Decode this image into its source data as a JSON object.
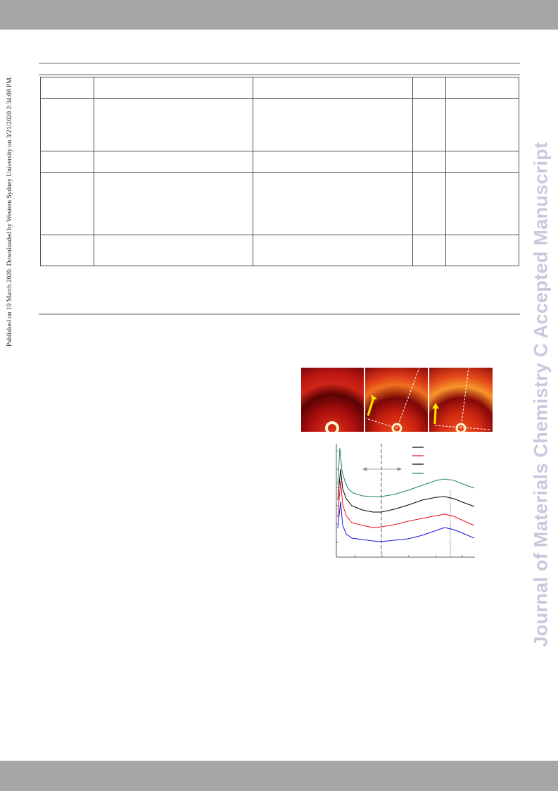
{
  "sidebar_text": "Published on 19 March 2020. Downloaded by Western Sydney University on 3/21/2020 2:34:08 PM.",
  "watermark": "Journal of Materials Chemistry C Accepted Manuscript",
  "colors": {
    "band": "#a6a6a6",
    "watermark": "#c7c9dd",
    "series": [
      "#000000",
      "#e8131b",
      "#000000",
      "#1f7f78"
    ]
  },
  "chart_data": {
    "type": "line",
    "title": "",
    "xlabel": "",
    "ylabel": "",
    "y_scale": "log",
    "legend": "top-right",
    "series": [
      {
        "color": "#1f7f78"
      },
      {
        "color": "#000000"
      },
      {
        "color": "#e8131b"
      },
      {
        "color": "#1414d8"
      }
    ]
  }
}
